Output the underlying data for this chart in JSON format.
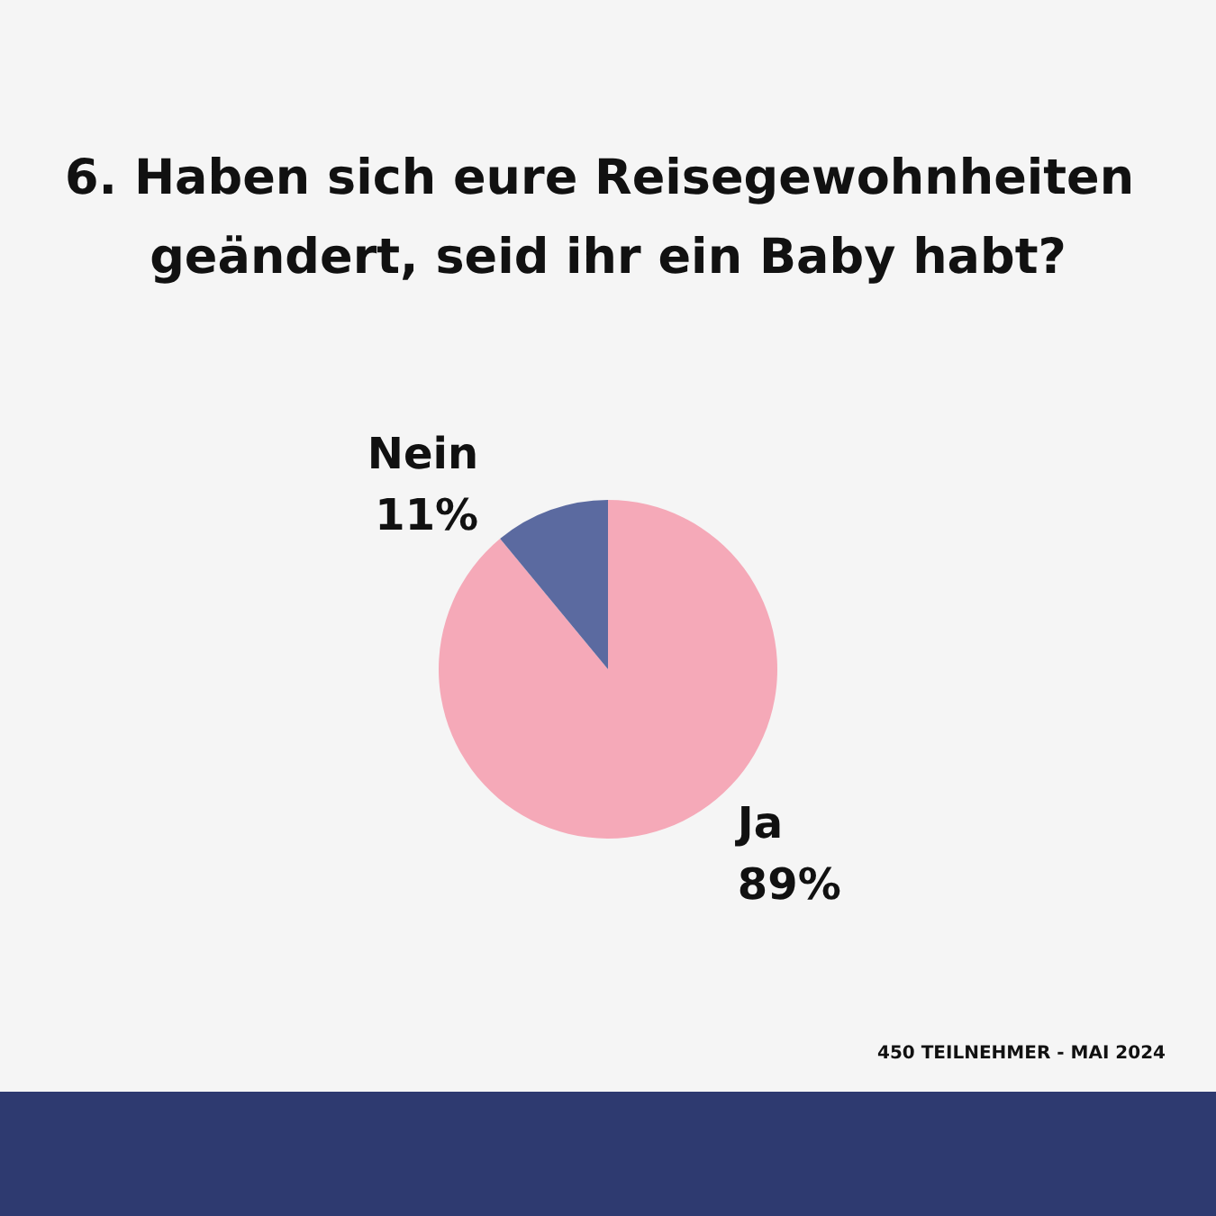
{
  "chart_data": {
    "type": "pie",
    "title": "6. Haben sich eure Reisegewohnheiten geändert, seid ihr ein Baby habt?",
    "categories": [
      "Ja",
      "Nein"
    ],
    "values": [
      89,
      11
    ],
    "colors": [
      "#f5a9b8",
      "#5b6aa0"
    ],
    "value_labels": [
      "89%",
      "11%"
    ],
    "annotations": [
      "450 TEILNEHMER - MAI 2024"
    ]
  }
}
